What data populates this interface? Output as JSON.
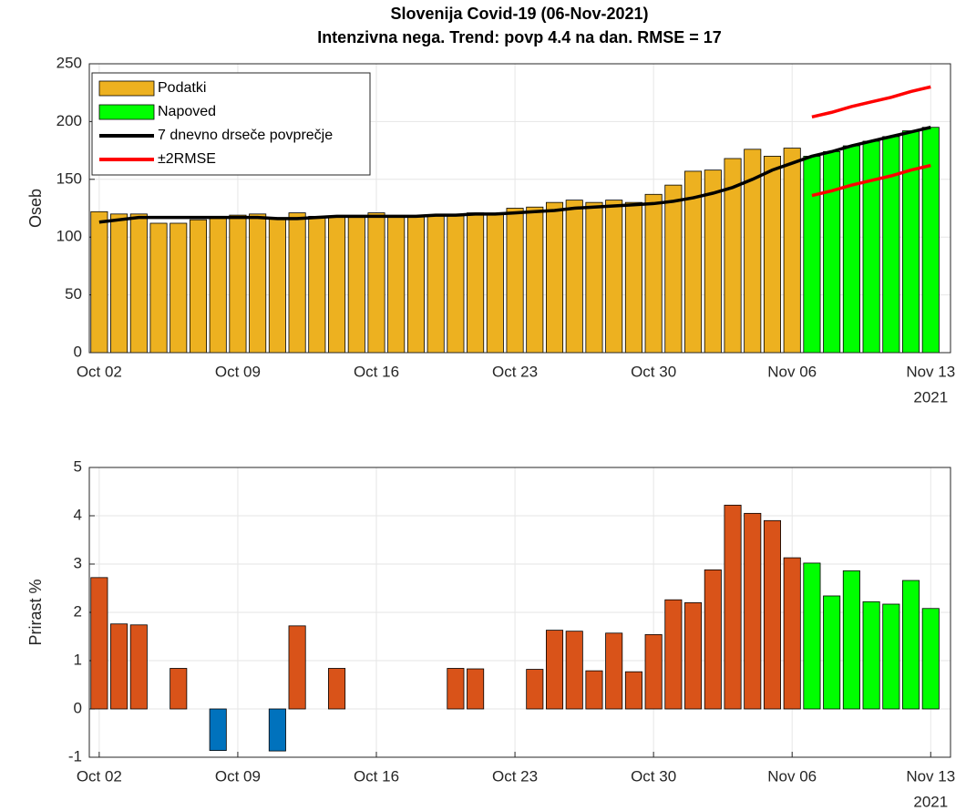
{
  "chart_data": [
    {
      "type": "bar",
      "title": "Slovenija Covid-19 (06-Nov-2021)",
      "subtitle": "Intenzivna nega. Trend: povp 4.4 na dan. RMSE = 17",
      "ylabel": "Oseb",
      "categories": [
        "2021-10-02",
        "2021-10-03",
        "2021-10-04",
        "2021-10-05",
        "2021-10-06",
        "2021-10-07",
        "2021-10-08",
        "2021-10-09",
        "2021-10-10",
        "2021-10-11",
        "2021-10-12",
        "2021-10-13",
        "2021-10-14",
        "2021-10-15",
        "2021-10-16",
        "2021-10-17",
        "2021-10-18",
        "2021-10-19",
        "2021-10-20",
        "2021-10-21",
        "2021-10-22",
        "2021-10-23",
        "2021-10-24",
        "2021-10-25",
        "2021-10-26",
        "2021-10-27",
        "2021-10-28",
        "2021-10-29",
        "2021-10-30",
        "2021-10-31",
        "2021-11-01",
        "2021-11-02",
        "2021-11-03",
        "2021-11-04",
        "2021-11-05",
        "2021-11-06",
        "2021-11-07",
        "2021-11-08",
        "2021-11-09",
        "2021-11-10",
        "2021-11-11",
        "2021-11-12",
        "2021-11-13"
      ],
      "series": [
        {
          "name": "Podatki",
          "type": "bar",
          "color": "#edb120",
          "values": [
            122,
            120,
            120,
            112,
            112,
            115,
            117,
            119,
            120,
            116,
            121,
            118,
            118,
            117,
            121,
            118,
            118,
            119,
            119,
            121,
            120,
            125,
            126,
            130,
            132,
            130,
            132,
            130,
            137,
            145,
            157,
            158,
            168,
            176,
            170,
            177,
            null,
            null,
            null,
            null,
            null,
            null,
            null
          ]
        },
        {
          "name": "Napoved",
          "type": "bar",
          "color": "#00ff00",
          "values": [
            null,
            null,
            null,
            null,
            null,
            null,
            null,
            null,
            null,
            null,
            null,
            null,
            null,
            null,
            null,
            null,
            null,
            null,
            null,
            null,
            null,
            null,
            null,
            null,
            null,
            null,
            null,
            null,
            null,
            null,
            null,
            null,
            null,
            null,
            null,
            null,
            170,
            174,
            179,
            183,
            187,
            192,
            195
          ]
        },
        {
          "name": "7 dnevno drseče povprečje",
          "type": "line",
          "color": "#000000",
          "values": [
            113,
            115,
            117,
            117,
            117,
            117,
            117,
            117,
            117,
            116,
            116,
            117,
            118,
            118,
            118,
            118,
            118,
            119,
            119,
            120,
            120,
            121,
            122,
            123,
            125,
            126,
            127,
            128,
            129,
            131,
            134,
            138,
            143,
            150,
            158,
            164,
            170,
            174,
            179,
            183,
            187,
            191,
            195
          ]
        },
        {
          "name": "±2RMSE",
          "type": "bounds",
          "color": "#ff0000",
          "upper": [
            null,
            null,
            null,
            null,
            null,
            null,
            null,
            null,
            null,
            null,
            null,
            null,
            null,
            null,
            null,
            null,
            null,
            null,
            null,
            null,
            null,
            null,
            null,
            null,
            null,
            null,
            null,
            null,
            null,
            null,
            null,
            null,
            null,
            null,
            null,
            null,
            204,
            208,
            213,
            217,
            221,
            226,
            230
          ],
          "lower": [
            null,
            null,
            null,
            null,
            null,
            null,
            null,
            null,
            null,
            null,
            null,
            null,
            null,
            null,
            null,
            null,
            null,
            null,
            null,
            null,
            null,
            null,
            null,
            null,
            null,
            null,
            null,
            null,
            null,
            null,
            null,
            null,
            null,
            null,
            null,
            null,
            136,
            140,
            145,
            149,
            153,
            158,
            162
          ]
        }
      ],
      "xlim": [
        "2021-10-01T12:00:00Z",
        "2021-11-14T00:00:00Z"
      ],
      "xticks": [
        {
          "value": "2021-10-02",
          "label": "Oct 02"
        },
        {
          "value": "2021-10-09",
          "label": "Oct 09"
        },
        {
          "value": "2021-10-16",
          "label": "Oct 16"
        },
        {
          "value": "2021-10-23",
          "label": "Oct 23"
        },
        {
          "value": "2021-10-30",
          "label": "Oct 30"
        },
        {
          "value": "2021-11-06",
          "label": "Nov 06"
        },
        {
          "value": "2021-11-13",
          "label": "Nov 13"
        }
      ],
      "year_label": "2021",
      "ylim": [
        0,
        250
      ],
      "yticks": [
        0,
        50,
        100,
        150,
        200,
        250
      ],
      "grid": true,
      "legend": "upper-left"
    },
    {
      "type": "bar",
      "ylabel": "Prirast %",
      "categories": [
        "2021-10-02",
        "2021-10-03",
        "2021-10-04",
        "2021-10-05",
        "2021-10-06",
        "2021-10-07",
        "2021-10-08",
        "2021-10-09",
        "2021-10-10",
        "2021-10-11",
        "2021-10-12",
        "2021-10-13",
        "2021-10-14",
        "2021-10-15",
        "2021-10-16",
        "2021-10-17",
        "2021-10-18",
        "2021-10-19",
        "2021-10-20",
        "2021-10-21",
        "2021-10-22",
        "2021-10-23",
        "2021-10-24",
        "2021-10-25",
        "2021-10-26",
        "2021-10-27",
        "2021-10-28",
        "2021-10-29",
        "2021-10-30",
        "2021-10-31",
        "2021-11-01",
        "2021-11-02",
        "2021-11-03",
        "2021-11-04",
        "2021-11-05",
        "2021-11-06",
        "2021-11-07",
        "2021-11-08",
        "2021-11-09",
        "2021-11-10",
        "2021-11-11",
        "2021-11-12",
        "2021-11-13"
      ],
      "series": [
        {
          "type": "bar",
          "color": "#d95319",
          "negative_color": "#0072bd",
          "values": [
            2.72,
            1.76,
            1.74,
            0,
            0.84,
            0,
            -0.86,
            0,
            0,
            -0.87,
            1.72,
            0,
            0.84,
            0,
            0,
            0,
            0,
            0,
            0.84,
            0.83,
            0,
            0,
            0.82,
            1.63,
            1.61,
            0.79,
            1.57,
            0.77,
            1.54,
            2.26,
            2.2,
            2.88,
            4.22,
            4.05,
            3.9,
            3.13,
            null,
            null,
            null,
            null,
            null,
            null,
            null
          ]
        },
        {
          "type": "bar",
          "color": "#00ff00",
          "values": [
            null,
            null,
            null,
            null,
            null,
            null,
            null,
            null,
            null,
            null,
            null,
            null,
            null,
            null,
            null,
            null,
            null,
            null,
            null,
            null,
            null,
            null,
            null,
            null,
            null,
            null,
            null,
            null,
            null,
            null,
            null,
            null,
            null,
            null,
            null,
            null,
            3.02,
            2.34,
            2.86,
            2.22,
            2.17,
            2.66,
            2.08
          ]
        }
      ],
      "xlim": [
        "2021-10-01T12:00:00Z",
        "2021-11-14T00:00:00Z"
      ],
      "xticks": [
        {
          "value": "2021-10-02",
          "label": "Oct 02"
        },
        {
          "value": "2021-10-09",
          "label": "Oct 09"
        },
        {
          "value": "2021-10-16",
          "label": "Oct 16"
        },
        {
          "value": "2021-10-23",
          "label": "Oct 23"
        },
        {
          "value": "2021-10-30",
          "label": "Oct 30"
        },
        {
          "value": "2021-11-06",
          "label": "Nov 06"
        },
        {
          "value": "2021-11-13",
          "label": "Nov 13"
        }
      ],
      "year_label": "2021",
      "ylim": [
        -1,
        5
      ],
      "yticks": [
        -1,
        0,
        1,
        2,
        3,
        4,
        5
      ],
      "grid": true
    }
  ]
}
